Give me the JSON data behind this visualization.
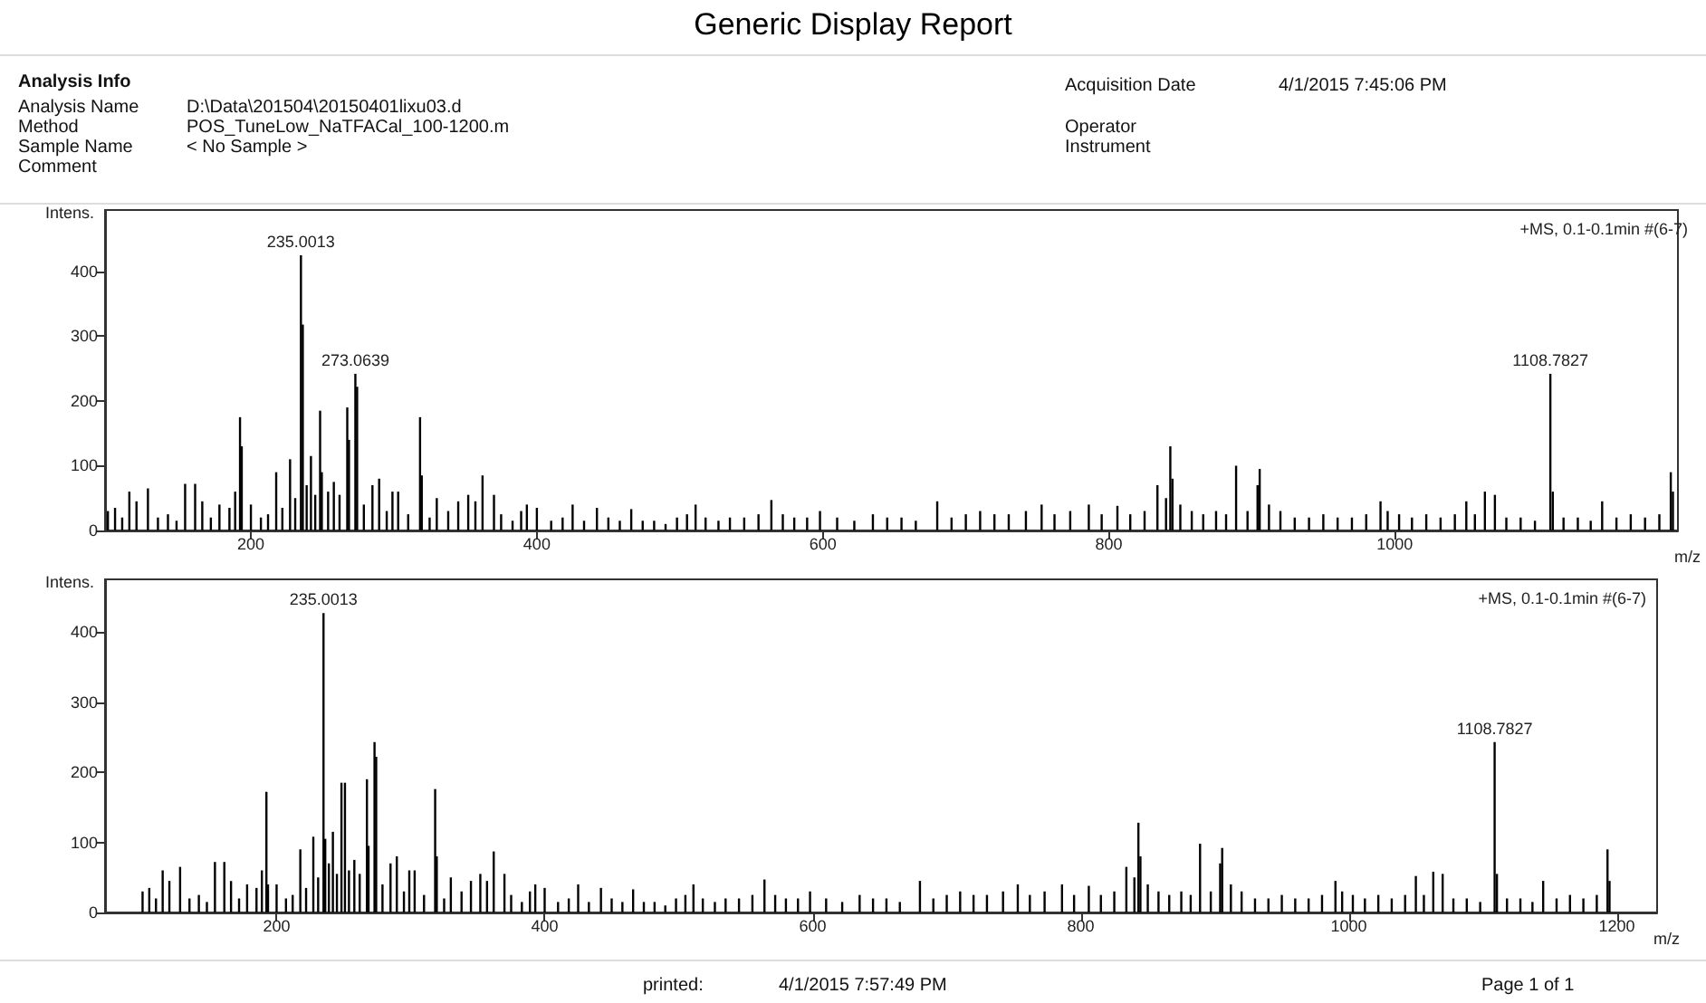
{
  "chart_data": [
    {
      "type": "other",
      "title": "Generic Display Report",
      "annotations": [
        "Analysis Info",
        "Analysis Name",
        "D:\\Data\\201504\\20150401lixu03.d",
        "Method",
        "POS_TuneLow_NaTFACal_100-1200.m",
        "Sample Name",
        "< No Sample >",
        "Comment",
        "Acquisition Date",
        "4/1/2015 7:45:06 PM",
        "Operator",
        "Instrument"
      ]
    },
    {
      "type": "bar",
      "xlabel": "m/z",
      "ylabel": "Intens.",
      "xlim": [
        98,
        1198
      ],
      "xticks": [
        200,
        400,
        600,
        800,
        1000
      ],
      "ylim": [
        0,
        495
      ],
      "yticks": [
        0,
        100,
        200,
        300,
        400
      ],
      "annotations": [
        "+MS, 0.1-0.1min #(6-7)",
        {
          "text": "235.0013",
          "x": 235.0013,
          "y": 425
        },
        {
          "text": "273.0639",
          "x": 273.0639,
          "y": 242
        },
        {
          "text": "1108.7827",
          "x": 1108.7827,
          "y": 242
        }
      ],
      "series": [
        {
          "color": "#000000",
          "x": [
            100,
            105,
            110,
            115,
            120,
            128,
            135,
            142,
            148,
            154,
            161,
            166,
            172,
            178,
            185,
            189,
            192.4,
            193.6,
            200,
            207,
            212,
            217.7,
            222,
            227.4,
            231,
            235.0013,
            236.3,
            239,
            242,
            245,
            248.4,
            249.6,
            254,
            258,
            262,
            267.4,
            268.6,
            273.0639,
            274.3,
            279,
            285,
            289.7,
            295,
            299,
            303,
            310,
            318.3,
            319.5,
            325,
            330,
            338,
            345,
            352,
            357,
            362,
            370,
            375,
            383,
            389,
            393,
            400,
            410,
            418,
            425,
            433,
            442,
            450,
            458,
            466,
            474,
            482,
            490,
            498,
            505,
            511,
            518,
            527,
            535,
            545,
            555,
            564,
            572,
            580,
            589,
            598,
            610,
            622,
            635,
            645,
            655,
            665,
            680,
            690,
            700,
            710,
            720,
            730,
            742,
            753,
            762,
            773,
            786,
            795,
            806,
            815,
            825,
            834,
            840,
            843,
            844.5,
            850,
            858,
            866,
            875,
            882,
            889,
            897,
            904,
            905.5,
            912,
            920,
            930,
            940,
            950,
            960,
            970,
            980,
            990,
            995,
            1003,
            1012,
            1022,
            1032,
            1042,
            1050,
            1056,
            1063,
            1070,
            1078,
            1088,
            1098,
            1108.7827,
            1110.5,
            1118,
            1128,
            1137,
            1145,
            1155,
            1165,
            1175,
            1185,
            1193,
            1194.5
          ],
          "values": [
            30,
            35,
            20,
            60,
            45,
            65,
            20,
            25,
            15,
            72,
            72,
            45,
            20,
            40,
            35,
            60,
            175,
            130,
            40,
            20,
            25,
            90,
            35,
            110,
            50,
            425,
            318,
            70,
            115,
            55,
            185,
            90,
            60,
            75,
            55,
            190,
            140,
            242,
            222,
            40,
            70,
            80,
            30,
            60,
            60,
            25,
            175,
            85,
            20,
            50,
            30,
            45,
            55,
            45,
            85,
            55,
            25,
            15,
            30,
            40,
            35,
            15,
            20,
            40,
            15,
            35,
            20,
            15,
            33,
            15,
            15,
            10,
            20,
            25,
            40,
            20,
            15,
            20,
            20,
            25,
            47,
            25,
            20,
            20,
            30,
            20,
            15,
            25,
            20,
            20,
            15,
            45,
            20,
            25,
            30,
            25,
            25,
            30,
            40,
            25,
            30,
            40,
            25,
            38,
            25,
            30,
            70,
            50,
            130,
            80,
            40,
            30,
            25,
            30,
            25,
            100,
            30,
            70,
            95,
            40,
            30,
            20,
            20,
            25,
            20,
            20,
            25,
            45,
            30,
            25,
            20,
            25,
            20,
            25,
            45,
            25,
            60,
            55,
            20,
            20,
            15,
            242,
            60,
            20,
            20,
            15,
            45,
            20,
            25,
            20,
            25,
            90,
            60
          ]
        }
      ]
    },
    {
      "type": "bar",
      "xlabel": "m/z",
      "ylabel": "Intens.",
      "xlim": [
        72,
        1230
      ],
      "xticks": [
        200,
        400,
        600,
        800,
        1000,
        1200
      ],
      "ylim": [
        0,
        475
      ],
      "yticks": [
        0,
        100,
        200,
        300,
        400
      ],
      "annotations": [
        "+MS, 0.1-0.1min #(6-7)",
        {
          "text": "235.0013",
          "x": 235.0013,
          "y": 427
        },
        {
          "text": "1108.7827",
          "x": 1108.7827,
          "y": 243
        }
      ],
      "series": [
        {
          "color": "#000000",
          "x": [
            100,
            105,
            110,
            115,
            120,
            128,
            135,
            142,
            148,
            154,
            161,
            166,
            172,
            178,
            185,
            189,
            192.4,
            193.6,
            200,
            207,
            212,
            217.7,
            222,
            227.4,
            231,
            235.0013,
            236.3,
            239,
            242,
            245,
            248.4,
            251,
            254,
            258,
            262,
            267.4,
            268.6,
            273.0639,
            274.3,
            279,
            285,
            289.7,
            295,
            299,
            303,
            310,
            318.3,
            319.5,
            325,
            330,
            338,
            345,
            352,
            357,
            362,
            370,
            375,
            383,
            389,
            393,
            400,
            410,
            418,
            425,
            433,
            442,
            450,
            458,
            466,
            474,
            482,
            490,
            498,
            505,
            511,
            518,
            527,
            535,
            545,
            555,
            564,
            572,
            580,
            589,
            598,
            610,
            622,
            635,
            645,
            655,
            665,
            680,
            690,
            700,
            710,
            720,
            730,
            742,
            753,
            762,
            773,
            786,
            795,
            806,
            815,
            825,
            834,
            840,
            843,
            844.5,
            850,
            858,
            866,
            875,
            882,
            889,
            897,
            904,
            905.5,
            912,
            920,
            930,
            940,
            950,
            960,
            970,
            980,
            990,
            995,
            1003,
            1012,
            1022,
            1032,
            1042,
            1050,
            1056,
            1063,
            1070,
            1078,
            1088,
            1098,
            1108.7827,
            1110.5,
            1118,
            1128,
            1137,
            1145,
            1155,
            1165,
            1175,
            1185,
            1193,
            1194.5
          ],
          "values": [
            30,
            35,
            20,
            60,
            45,
            65,
            20,
            25,
            15,
            72,
            72,
            45,
            20,
            40,
            35,
            60,
            172,
            40,
            40,
            20,
            25,
            90,
            35,
            108,
            50,
            427,
            105,
            70,
            115,
            55,
            185,
            185,
            60,
            75,
            55,
            190,
            95,
            243,
            222,
            40,
            70,
            80,
            30,
            60,
            60,
            25,
            176,
            80,
            20,
            50,
            30,
            45,
            55,
            45,
            87,
            55,
            25,
            15,
            30,
            40,
            35,
            15,
            20,
            40,
            15,
            35,
            20,
            15,
            33,
            15,
            15,
            10,
            20,
            25,
            40,
            20,
            15,
            20,
            20,
            25,
            47,
            25,
            20,
            20,
            30,
            20,
            15,
            25,
            20,
            20,
            15,
            45,
            20,
            25,
            30,
            25,
            25,
            30,
            40,
            25,
            30,
            40,
            25,
            38,
            25,
            30,
            65,
            50,
            128,
            80,
            40,
            30,
            25,
            30,
            25,
            98,
            30,
            70,
            92,
            40,
            30,
            20,
            20,
            25,
            20,
            20,
            25,
            45,
            30,
            25,
            20,
            25,
            20,
            25,
            52,
            25,
            58,
            55,
            20,
            20,
            15,
            243,
            55,
            20,
            20,
            15,
            45,
            20,
            25,
            20,
            25,
            90,
            45
          ]
        }
      ]
    },
    {
      "type": "other",
      "annotations": [
        "printed:",
        "4/1/2015 7:57:49 PM",
        "Page 1 of 1"
      ]
    }
  ]
}
